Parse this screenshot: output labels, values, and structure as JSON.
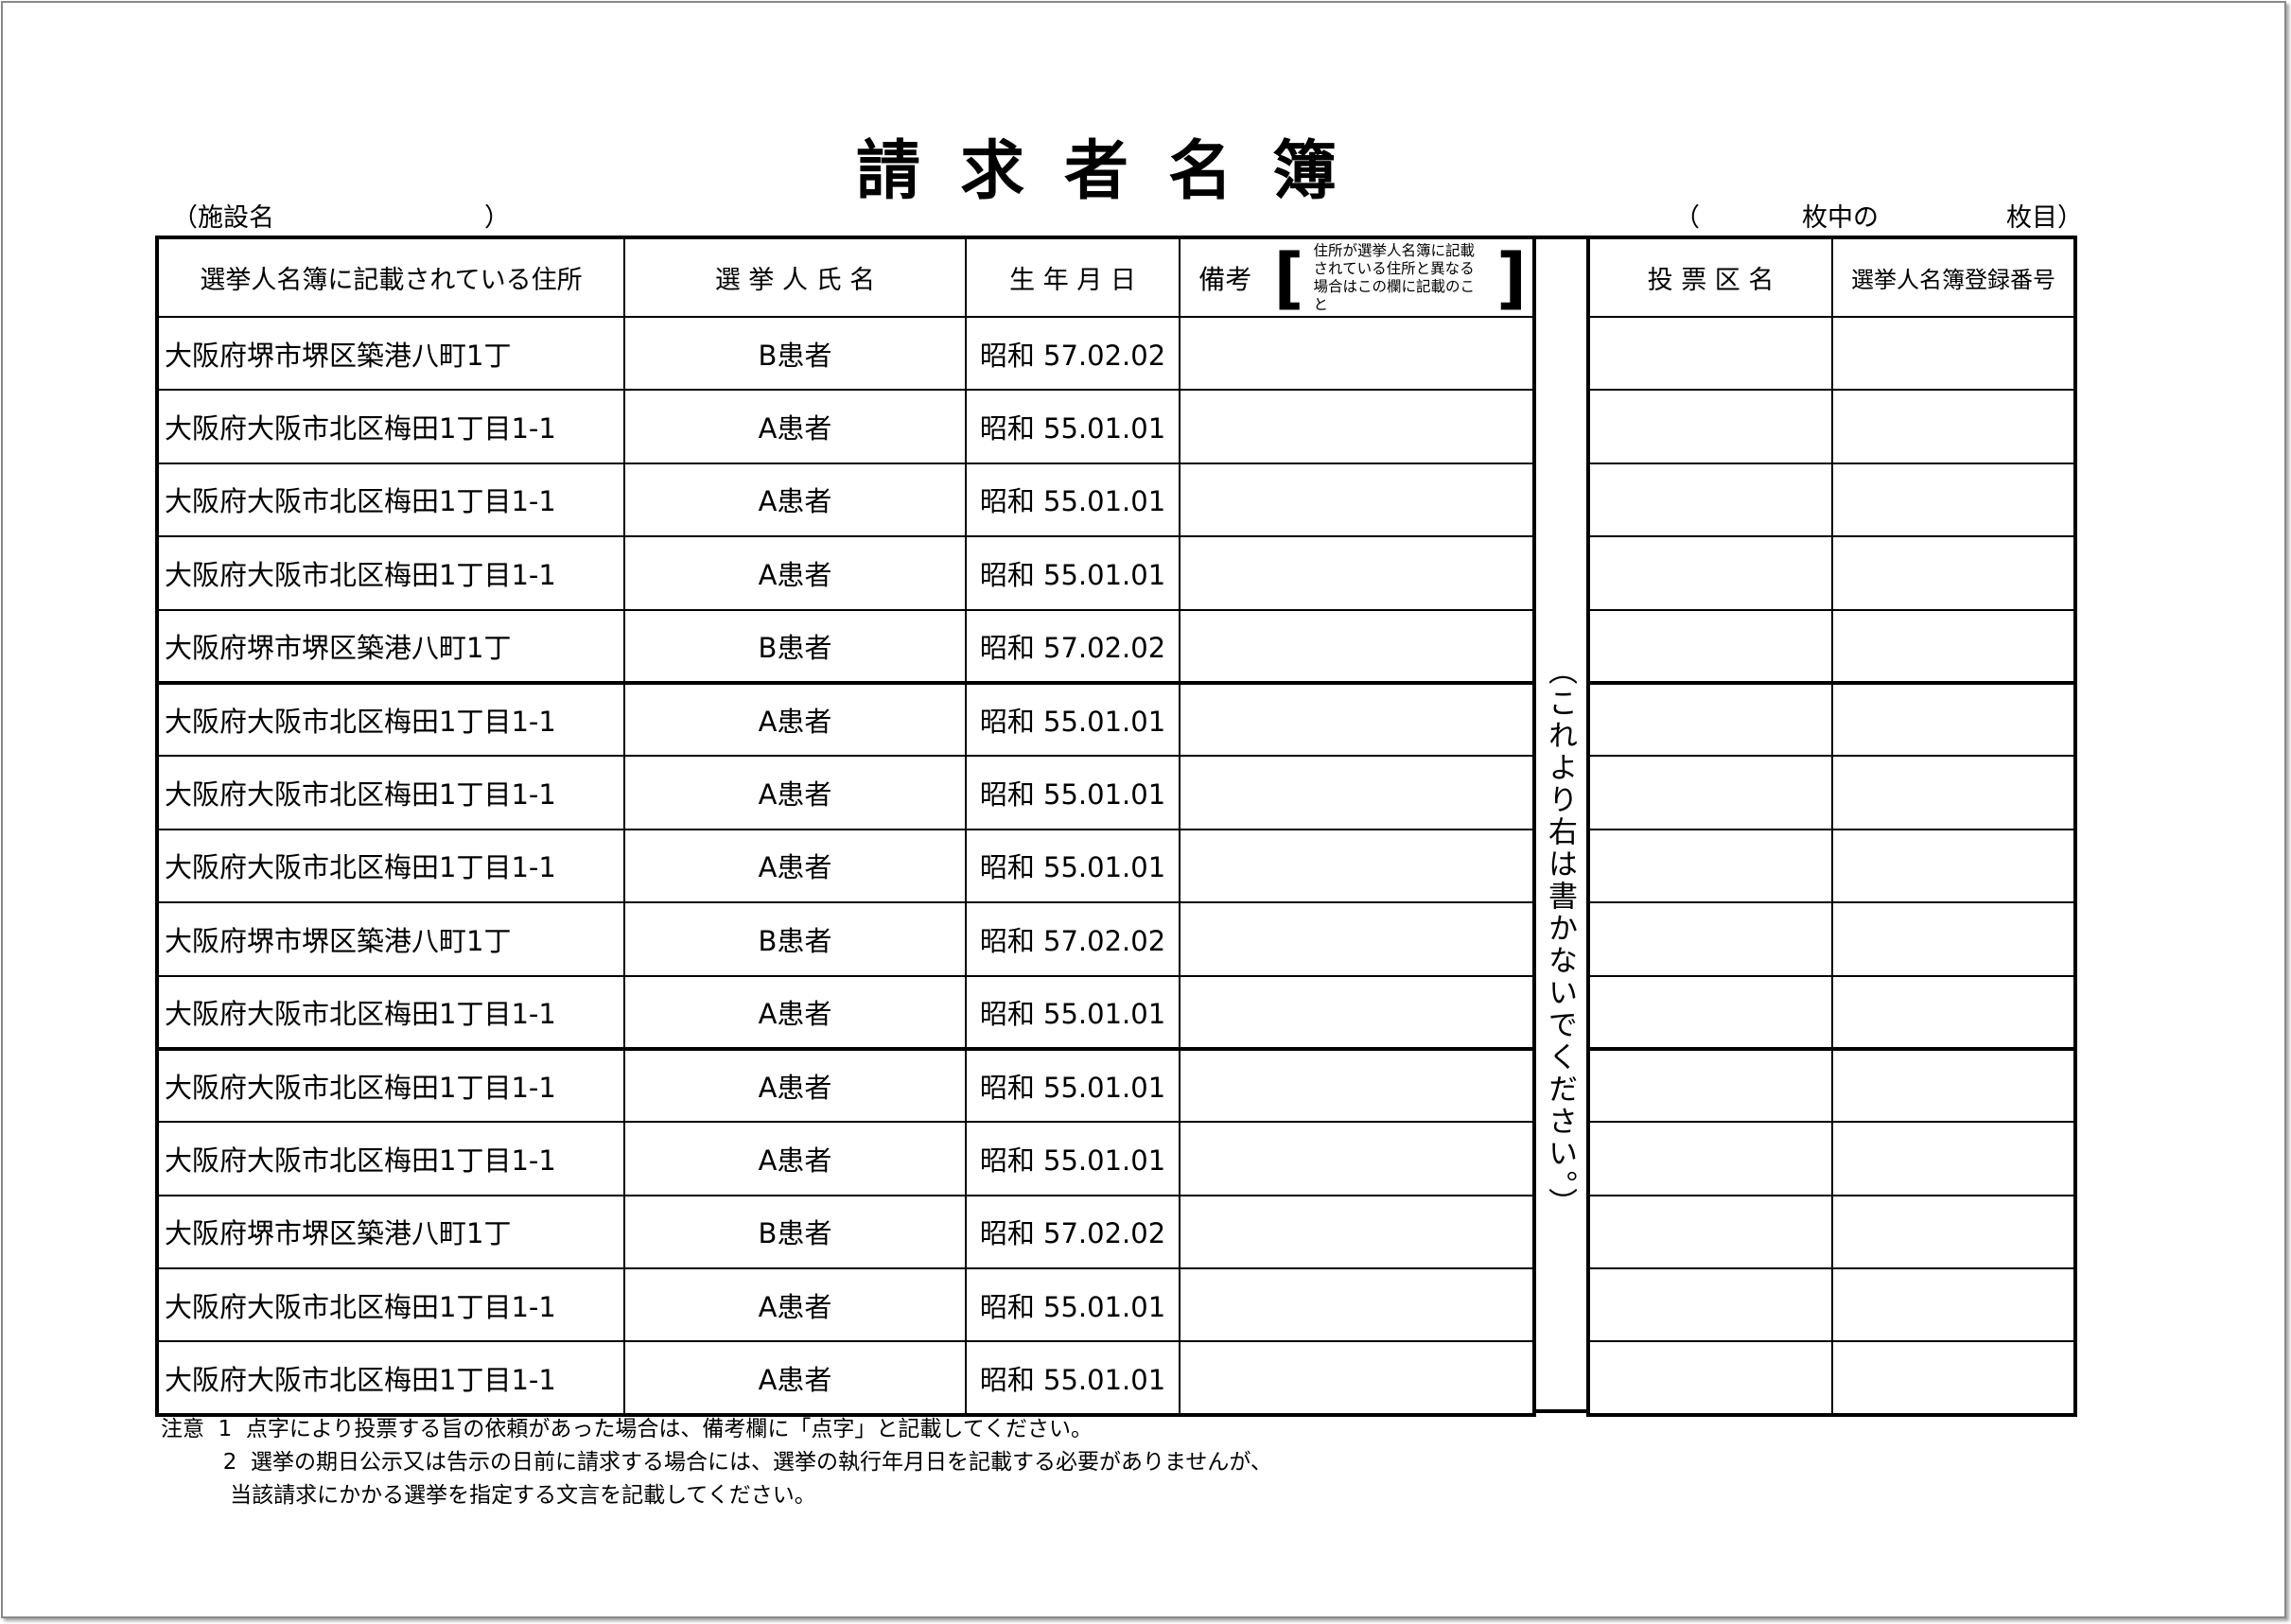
{
  "title": "請求者名簿",
  "facility": {
    "label": "（施設名",
    "close": "）"
  },
  "sheet_count": "（　　　　枚中の　　　　　枚目）",
  "headers": {
    "address": "選挙人名簿に記載されている住所",
    "name": "選 挙 人 氏 名",
    "birth": "生 年 月 日",
    "remark": "備考",
    "remark_note": "住所が選挙人名簿に記載されている住所と異なる場合はこの欄に記載のこと",
    "district": "投 票 区 名",
    "reg_no": "選挙人名簿登録番号"
  },
  "divider_text": "（これより右は書かないでください。）",
  "rows": [
    {
      "address": "大阪府堺市堺区築港八町1丁",
      "name": "B患者",
      "birth": "昭和 57.02.02"
    },
    {
      "address": "大阪府大阪市北区梅田1丁目1-1",
      "name": "A患者",
      "birth": "昭和 55.01.01"
    },
    {
      "address": "大阪府大阪市北区梅田1丁目1-1",
      "name": "A患者",
      "birth": "昭和 55.01.01"
    },
    {
      "address": "大阪府大阪市北区梅田1丁目1-1",
      "name": "A患者",
      "birth": "昭和 55.01.01"
    },
    {
      "address": "大阪府堺市堺区築港八町1丁",
      "name": "B患者",
      "birth": "昭和 57.02.02"
    },
    {
      "address": "大阪府大阪市北区梅田1丁目1-1",
      "name": "A患者",
      "birth": "昭和 55.01.01"
    },
    {
      "address": "大阪府大阪市北区梅田1丁目1-1",
      "name": "A患者",
      "birth": "昭和 55.01.01"
    },
    {
      "address": "大阪府大阪市北区梅田1丁目1-1",
      "name": "A患者",
      "birth": "昭和 55.01.01"
    },
    {
      "address": "大阪府堺市堺区築港八町1丁",
      "name": "B患者",
      "birth": "昭和 57.02.02"
    },
    {
      "address": "大阪府大阪市北区梅田1丁目1-1",
      "name": "A患者",
      "birth": "昭和 55.01.01"
    },
    {
      "address": "大阪府大阪市北区梅田1丁目1-1",
      "name": "A患者",
      "birth": "昭和 55.01.01"
    },
    {
      "address": "大阪府大阪市北区梅田1丁目1-1",
      "name": "A患者",
      "birth": "昭和 55.01.01"
    },
    {
      "address": "大阪府堺市堺区築港八町1丁",
      "name": "B患者",
      "birth": "昭和 57.02.02"
    },
    {
      "address": "大阪府大阪市北区梅田1丁目1-1",
      "name": "A患者",
      "birth": "昭和 55.01.01"
    },
    {
      "address": "大阪府大阪市北区梅田1丁目1-1",
      "name": "A患者",
      "birth": "昭和 55.01.01"
    }
  ],
  "notes": [
    "注意  1  点字により投票する旨の依頼があった場合は、備考欄に「点字」と記載してください。",
    "         2  選挙の期日公示又は告示の日前に請求する場合には、選挙の執行年月日を記載する必要がありませんが、",
    "          当該請求にかかる選挙を指定する文言を記載してください。"
  ]
}
